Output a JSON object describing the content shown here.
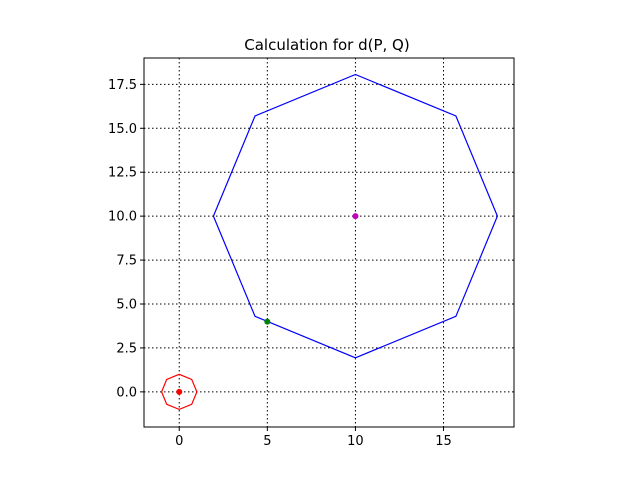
{
  "chart_data": {
    "type": "scatter",
    "title": "Calculation for d(P, Q)",
    "xlabel": "",
    "ylabel": "",
    "xlim": [
      -2,
      19
    ],
    "ylim": [
      -2,
      19
    ],
    "grid": true,
    "grid_style": "dotted",
    "x_ticks": [
      0,
      5,
      10,
      15
    ],
    "x_tick_labels": [
      "0",
      "5",
      "10",
      "15"
    ],
    "y_ticks": [
      0.0,
      2.5,
      5.0,
      7.5,
      10.0,
      12.5,
      15.0,
      17.5
    ],
    "y_tick_labels": [
      "0.0",
      "2.5",
      "5.0",
      "7.5",
      "10.0",
      "12.5",
      "15.0",
      "17.5"
    ],
    "polygons": [
      {
        "color": "#0000ff",
        "points": [
          [
            18.06,
            10.0
          ],
          [
            15.7,
            15.7
          ],
          [
            10.0,
            18.06
          ],
          [
            4.3,
            15.7
          ],
          [
            1.94,
            10.0
          ],
          [
            4.3,
            4.3
          ],
          [
            10.0,
            1.94
          ],
          [
            15.7,
            4.3
          ]
        ]
      },
      {
        "color": "#ff0000",
        "points": [
          [
            1.0,
            0.0
          ],
          [
            0.71,
            0.71
          ],
          [
            0.0,
            1.0
          ],
          [
            -0.71,
            0.71
          ],
          [
            -1.0,
            0.0
          ],
          [
            -0.71,
            -0.71
          ],
          [
            0.0,
            -1.0
          ],
          [
            0.71,
            -0.71
          ]
        ]
      }
    ],
    "points": [
      {
        "x": 0,
        "y": 0,
        "color": "#ff0000"
      },
      {
        "x": 10,
        "y": 10,
        "color": "#bf00bf"
      },
      {
        "x": 5,
        "y": 4,
        "color": "#008000"
      }
    ]
  }
}
